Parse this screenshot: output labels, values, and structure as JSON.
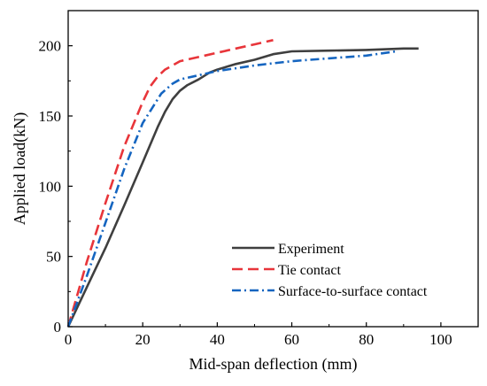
{
  "chart_data": {
    "type": "line",
    "title": "",
    "xlabel": "Mid-span deflection (mm)",
    "ylabel": "Applied load(kN)",
    "xlim": [
      0,
      110
    ],
    "ylim": [
      0,
      225
    ],
    "x_ticks": [
      0,
      20,
      40,
      60,
      80,
      100
    ],
    "y_ticks": [
      0,
      50,
      100,
      150,
      200
    ],
    "grid": false,
    "legend_position": "bottom-right",
    "series": [
      {
        "name": "Experiment",
        "color": "#3f3f3f",
        "style": "solid",
        "x": [
          0,
          5,
          10,
          15,
          20,
          24,
          26,
          28,
          30,
          32,
          35,
          38,
          40,
          45,
          50,
          55,
          60,
          70,
          80,
          90,
          94
        ],
        "y": [
          0,
          28,
          56,
          86,
          117,
          142,
          153,
          162,
          168,
          172,
          176,
          181,
          183,
          187,
          190,
          194,
          196,
          196.5,
          197,
          198,
          198
        ]
      },
      {
        "name": "Tie contact",
        "color": "#e8353a",
        "style": "dashed",
        "x": [
          0,
          5,
          10,
          15,
          20,
          22,
          24,
          26,
          28,
          30,
          35,
          40,
          45,
          50,
          55
        ],
        "y": [
          0,
          46,
          88,
          128,
          160,
          171,
          178,
          183,
          186,
          189,
          192,
          195,
          198,
          201,
          204
        ]
      },
      {
        "name": "Surface-to-surface contact",
        "color": "#1565c0",
        "style": "dashdot",
        "x": [
          0,
          5,
          10,
          15,
          20,
          25,
          28,
          30,
          35,
          40,
          45,
          50,
          60,
          70,
          80,
          88
        ],
        "y": [
          0,
          36,
          74,
          112,
          145,
          166,
          173,
          176,
          179,
          182,
          184,
          186,
          189,
          191,
          193,
          196
        ]
      }
    ]
  }
}
